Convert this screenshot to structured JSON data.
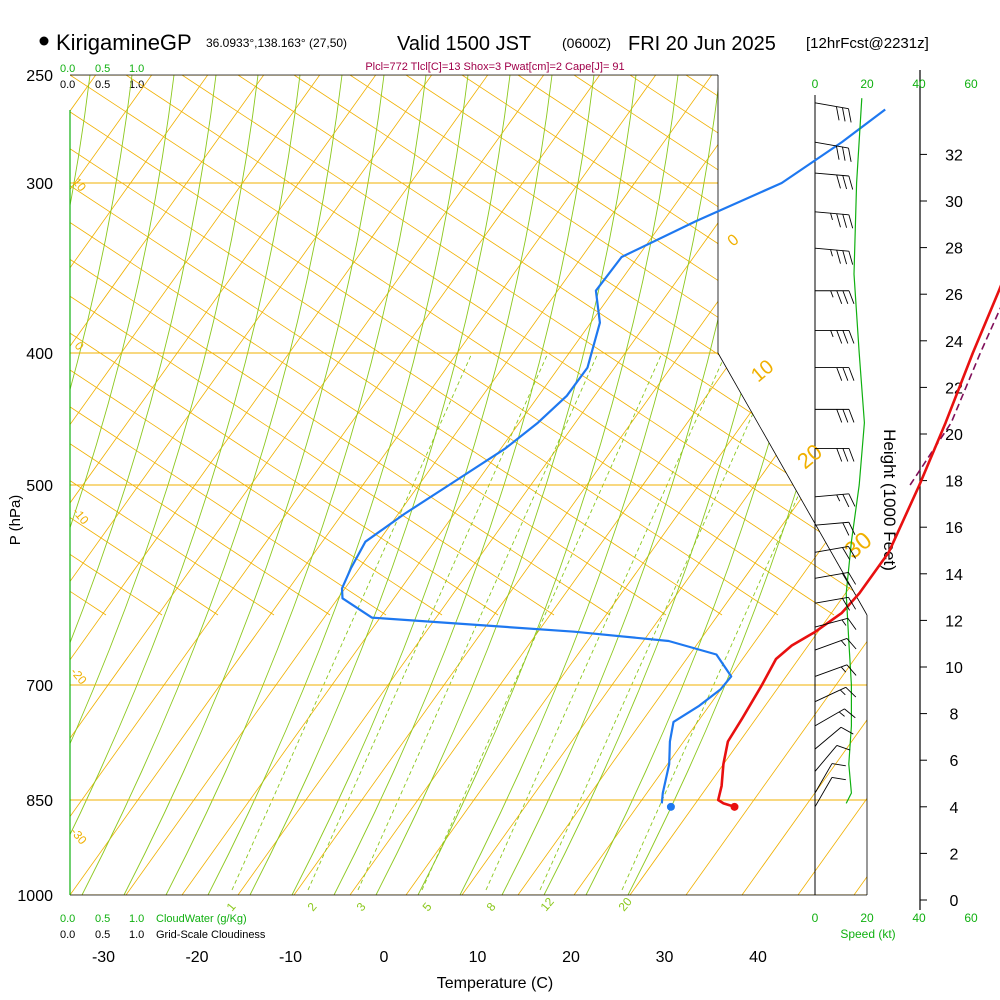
{
  "header": {
    "station": "KirigamineGP",
    "coords": "36.0933°,138.163° (27,50)",
    "valid_prefix": "Valid 1500 JST",
    "valid_utc": "(0600Z)",
    "valid_date": "FRI 20 Jun 2025",
    "forecast": "[12hrFcst@2231z]",
    "indices": "Plcl=772 Tlcl[C]=13 Shox=3 Pwat[cm]=2 Cape[J]= 91"
  },
  "colors": {
    "isobar": "#f0b000",
    "dry_adiabat": "#f0b000",
    "moist_adiabat": "#8cc81e",
    "mixing_ratio": "#8cc81e",
    "temperature": "#e81010",
    "dewpoint": "#1e78f0",
    "parcel": "#80105a",
    "green_scale": "#10b010",
    "indices_text": "#a0004a"
  },
  "chart_data": {
    "type": "skew-t",
    "xlabel": "Temperature (C)",
    "ylabel": "P (hPa)",
    "ylabel_right": "Height (1000 Feet)",
    "x_ticks": [
      "-30",
      "-20",
      "-10",
      "0",
      "10",
      "20",
      "30",
      "40"
    ],
    "x_tick_values": [
      -30,
      -20,
      -10,
      0,
      10,
      20,
      30,
      40
    ],
    "y_ticks": [
      "250",
      "300",
      "400",
      "500",
      "700",
      "850",
      "1000"
    ],
    "y_tick_values": [
      250,
      300,
      400,
      500,
      700,
      850,
      1000
    ],
    "height_ticks": [
      "0",
      "2",
      "4",
      "6",
      "8",
      "10",
      "12",
      "14",
      "16",
      "18",
      "20",
      "22",
      "24",
      "26",
      "28",
      "30",
      "32"
    ],
    "height_tick_values": [
      0,
      2,
      4,
      6,
      8,
      10,
      12,
      14,
      16,
      18,
      20,
      22,
      24,
      26,
      28,
      30,
      32
    ],
    "dry_adiabat_labels": [
      "0",
      "10",
      "20",
      "30"
    ],
    "dry_adiabat_label_values": [
      0,
      10,
      20,
      30
    ],
    "moist_adiabat_labels": [
      "10",
      "0",
      "-10",
      "-20",
      "-30"
    ],
    "moist_adiabat_label_values": [
      10,
      0,
      -10,
      -20,
      -30
    ],
    "mixing_ratio_labels": [
      "1",
      "2",
      "3",
      "5",
      "8",
      "12",
      "20"
    ],
    "mixing_ratio_label_values": [
      1,
      2,
      3,
      5,
      8,
      12,
      20
    ],
    "top_scale_cloudwater": [
      "0.0",
      "0.5",
      "1.0"
    ],
    "top_scale_cloudiness": [
      "0.0",
      "0.5",
      "1.0"
    ],
    "bottom_scale_cloudwater": [
      "0.0",
      "0.5",
      "1.0"
    ],
    "bottom_scale_cloudiness": [
      "0.0",
      "0.5",
      "1.0"
    ],
    "cloudwater_label": "CloudWater (g/Kg)",
    "cloudiness_label": "Grid-Scale Cloudiness",
    "speed_ticks": [
      "0",
      "20",
      "40",
      "60"
    ],
    "speed_tick_values": [
      0,
      20,
      40,
      60
    ],
    "speed_label": "Speed (kt)",
    "temperature_profile": [
      {
        "p": 860,
        "t": 29.0
      },
      {
        "p": 855,
        "t": 27.5
      },
      {
        "p": 850,
        "t": 26.6
      },
      {
        "p": 830,
        "t": 25.6
      },
      {
        "p": 800,
        "t": 23.7
      },
      {
        "p": 770,
        "t": 22.0
      },
      {
        "p": 740,
        "t": 21.3
      },
      {
        "p": 700,
        "t": 20.2
      },
      {
        "p": 670,
        "t": 19.2
      },
      {
        "p": 655,
        "t": 19.6
      },
      {
        "p": 640,
        "t": 20.8
      },
      {
        "p": 620,
        "t": 21.8
      },
      {
        "p": 600,
        "t": 21.8
      },
      {
        "p": 560,
        "t": 21.0
      },
      {
        "p": 500,
        "t": 17.8
      },
      {
        "p": 450,
        "t": 14.6
      },
      {
        "p": 400,
        "t": 10.8
      },
      {
        "p": 360,
        "t": 7.6
      },
      {
        "p": 340,
        "t": 5.8
      },
      {
        "p": 320,
        "t": 3.4
      },
      {
        "p": 300,
        "t": 0.8
      },
      {
        "p": 280,
        "t": -2.0
      },
      {
        "p": 265,
        "t": -4.2
      }
    ],
    "dewpoint_profile": [
      {
        "p": 855,
        "t": 20.9
      },
      {
        "p": 840,
        "t": 20.0
      },
      {
        "p": 800,
        "t": 17.9
      },
      {
        "p": 770,
        "t": 15.8
      },
      {
        "p": 745,
        "t": 14.3
      },
      {
        "p": 725,
        "t": 15.5
      },
      {
        "p": 705,
        "t": 16.2
      },
      {
        "p": 690,
        "t": 16.1
      },
      {
        "p": 665,
        "t": 12.4
      },
      {
        "p": 650,
        "t": 6.0
      },
      {
        "p": 640,
        "t": -5.0
      },
      {
        "p": 625,
        "t": -28.0
      },
      {
        "p": 605,
        "t": -33.0
      },
      {
        "p": 595,
        "t": -34.0
      },
      {
        "p": 575,
        "t": -35.0
      },
      {
        "p": 550,
        "t": -36.0
      },
      {
        "p": 525,
        "t": -34.5
      },
      {
        "p": 500,
        "t": -32.5
      },
      {
        "p": 470,
        "t": -30.0
      },
      {
        "p": 450,
        "t": -29.0
      },
      {
        "p": 430,
        "t": -28.5
      },
      {
        "p": 410,
        "t": -29.0
      },
      {
        "p": 380,
        "t": -32.0
      },
      {
        "p": 360,
        "t": -35.5
      },
      {
        "p": 340,
        "t": -36.0
      },
      {
        "p": 320,
        "t": -31.5
      },
      {
        "p": 300,
        "t": -26.0
      },
      {
        "p": 280,
        "t": -23.5
      },
      {
        "p": 265,
        "t": -22.0
      }
    ],
    "parcel_profile": [
      {
        "p": 500,
        "t": 16.8
      },
      {
        "p": 450,
        "t": 15.2
      },
      {
        "p": 400,
        "t": 11.6
      },
      {
        "p": 360,
        "t": 8.6
      },
      {
        "p": 340,
        "t": 7.0
      },
      {
        "p": 320,
        "t": 4.8
      },
      {
        "p": 300,
        "t": 2.4
      },
      {
        "p": 280,
        "t": -0.8
      },
      {
        "p": 265,
        "t": -3.4
      }
    ],
    "surface_temperature": {
      "p": 860,
      "t": 29.0
    },
    "surface_dewpoint": {
      "p": 860,
      "t": 22.2
    },
    "wind_barbs": [
      {
        "p": 262,
        "speed": 30,
        "dir": 280
      },
      {
        "p": 280,
        "speed": 30,
        "dir": 280
      },
      {
        "p": 295,
        "speed": 30,
        "dir": 275
      },
      {
        "p": 315,
        "speed": 35,
        "dir": 275
      },
      {
        "p": 335,
        "speed": 35,
        "dir": 275
      },
      {
        "p": 360,
        "speed": 35,
        "dir": 270
      },
      {
        "p": 385,
        "speed": 35,
        "dir": 270
      },
      {
        "p": 410,
        "speed": 30,
        "dir": 270
      },
      {
        "p": 440,
        "speed": 30,
        "dir": 270
      },
      {
        "p": 470,
        "speed": 30,
        "dir": 270
      },
      {
        "p": 510,
        "speed": 25,
        "dir": 265
      },
      {
        "p": 535,
        "speed": 20,
        "dir": 265
      },
      {
        "p": 560,
        "speed": 20,
        "dir": 260
      },
      {
        "p": 585,
        "speed": 20,
        "dir": 260
      },
      {
        "p": 610,
        "speed": 20,
        "dir": 260
      },
      {
        "p": 635,
        "speed": 15,
        "dir": 255
      },
      {
        "p": 660,
        "speed": 15,
        "dir": 250
      },
      {
        "p": 690,
        "speed": 15,
        "dir": 250
      },
      {
        "p": 720,
        "speed": 15,
        "dir": 245
      },
      {
        "p": 750,
        "speed": 15,
        "dir": 240
      },
      {
        "p": 780,
        "speed": 10,
        "dir": 230
      },
      {
        "p": 810,
        "speed": 10,
        "dir": 220
      },
      {
        "p": 840,
        "speed": 10,
        "dir": 210
      },
      {
        "p": 860,
        "speed": 10,
        "dir": 210
      }
    ],
    "wind_speed_profile": [
      {
        "p": 260,
        "speed": 18
      },
      {
        "p": 300,
        "speed": 16
      },
      {
        "p": 350,
        "speed": 15
      },
      {
        "p": 400,
        "speed": 17
      },
      {
        "p": 450,
        "speed": 19
      },
      {
        "p": 500,
        "speed": 17
      },
      {
        "p": 550,
        "speed": 14
      },
      {
        "p": 600,
        "speed": 12
      },
      {
        "p": 650,
        "speed": 13
      },
      {
        "p": 700,
        "speed": 14
      },
      {
        "p": 750,
        "speed": 14
      },
      {
        "p": 800,
        "speed": 13
      },
      {
        "p": 840,
        "speed": 14
      },
      {
        "p": 855,
        "speed": 12
      }
    ]
  }
}
